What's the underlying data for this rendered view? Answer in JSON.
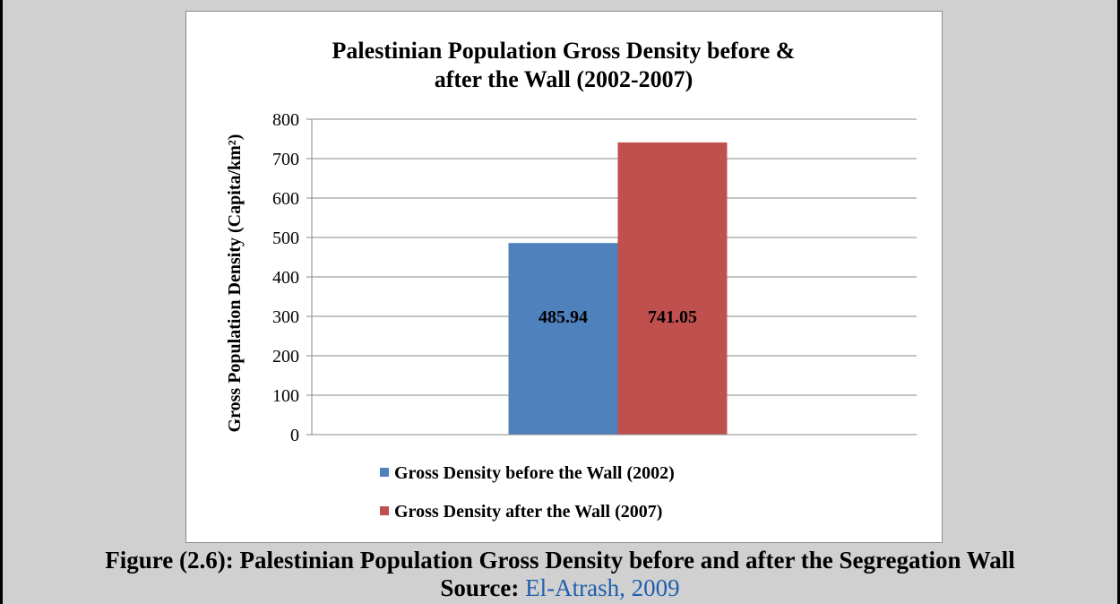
{
  "figure": {
    "caption": "Figure (2.6): Palestinian Population Gross Density before and after the Segregation Wall",
    "source_label": "Source:",
    "source_ref": "El-Atrash, 2009"
  },
  "chart_data": {
    "type": "bar",
    "title_lines": [
      "Palestinian Population Gross Density before &",
      "after the Wall (2002-2007)"
    ],
    "xlabel": "",
    "ylabel": "Gross Population Density (Capita/km²)",
    "ylim": [
      0,
      800
    ],
    "yticks": [
      0,
      100,
      200,
      300,
      400,
      500,
      600,
      700,
      800
    ],
    "grid": true,
    "legend_position": "bottom",
    "series": [
      {
        "name": "Gross Density before the Wall (2002)",
        "value": 485.94,
        "label": "485.94",
        "color": "#4f81bd"
      },
      {
        "name": "Gross Density after the Wall (2007)",
        "value": 741.05,
        "label": "741.05",
        "color": "#c0504d"
      }
    ]
  }
}
